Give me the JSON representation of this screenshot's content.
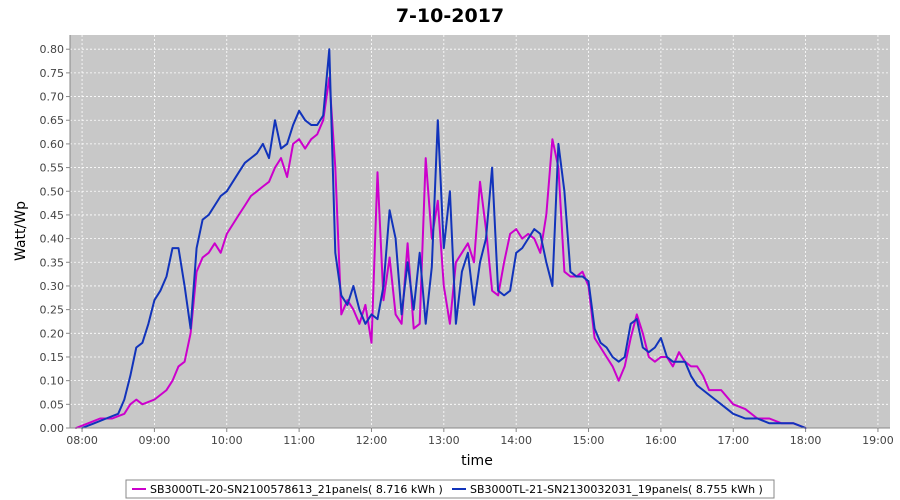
{
  "chart_data": {
    "type": "line",
    "title": "7-10-2017",
    "xlabel": "time",
    "ylabel": "Watt/Wp",
    "xlim": [
      "07:50",
      "19:10"
    ],
    "ylim": [
      0,
      0.83
    ],
    "x_ticks": [
      "08:00",
      "09:00",
      "10:00",
      "11:00",
      "12:00",
      "13:00",
      "14:00",
      "15:00",
      "16:00",
      "17:00",
      "18:00",
      "19:00"
    ],
    "y_ticks": [
      "0.00",
      "0.05",
      "0.10",
      "0.15",
      "0.20",
      "0.25",
      "0.30",
      "0.35",
      "0.40",
      "0.45",
      "0.50",
      "0.55",
      "0.60",
      "0.65",
      "0.70",
      "0.75",
      "0.80"
    ],
    "grid": true,
    "legend_position": "bottom",
    "background_color": "#c8c8c8",
    "series": [
      {
        "name": "SB3000TL-20-SN2100578613_21panels( 8.716 kWh )",
        "color": "#cc00cc",
        "points": [
          [
            "07:55",
            0.0
          ],
          [
            "08:05",
            0.01
          ],
          [
            "08:15",
            0.02
          ],
          [
            "08:25",
            0.02
          ],
          [
            "08:35",
            0.03
          ],
          [
            "08:40",
            0.05
          ],
          [
            "08:45",
            0.06
          ],
          [
            "08:50",
            0.05
          ],
          [
            "09:00",
            0.06
          ],
          [
            "09:10",
            0.08
          ],
          [
            "09:15",
            0.1
          ],
          [
            "09:20",
            0.13
          ],
          [
            "09:25",
            0.14
          ],
          [
            "09:30",
            0.2
          ],
          [
            "09:35",
            0.33
          ],
          [
            "09:40",
            0.36
          ],
          [
            "09:45",
            0.37
          ],
          [
            "09:50",
            0.39
          ],
          [
            "09:55",
            0.37
          ],
          [
            "10:00",
            0.41
          ],
          [
            "10:05",
            0.43
          ],
          [
            "10:10",
            0.45
          ],
          [
            "10:15",
            0.47
          ],
          [
            "10:20",
            0.49
          ],
          [
            "10:25",
            0.5
          ],
          [
            "10:30",
            0.51
          ],
          [
            "10:35",
            0.52
          ],
          [
            "10:40",
            0.55
          ],
          [
            "10:45",
            0.57
          ],
          [
            "10:50",
            0.53
          ],
          [
            "10:55",
            0.6
          ],
          [
            "11:00",
            0.61
          ],
          [
            "11:05",
            0.59
          ],
          [
            "11:10",
            0.61
          ],
          [
            "11:15",
            0.62
          ],
          [
            "11:20",
            0.65
          ],
          [
            "11:25",
            0.74
          ],
          [
            "11:30",
            0.55
          ],
          [
            "11:35",
            0.24
          ],
          [
            "11:40",
            0.27
          ],
          [
            "11:45",
            0.25
          ],
          [
            "11:50",
            0.22
          ],
          [
            "11:55",
            0.26
          ],
          [
            "12:00",
            0.18
          ],
          [
            "12:05",
            0.54
          ],
          [
            "12:10",
            0.27
          ],
          [
            "12:15",
            0.36
          ],
          [
            "12:20",
            0.24
          ],
          [
            "12:25",
            0.22
          ],
          [
            "12:30",
            0.39
          ],
          [
            "12:35",
            0.21
          ],
          [
            "12:40",
            0.22
          ],
          [
            "12:45",
            0.57
          ],
          [
            "12:50",
            0.4
          ],
          [
            "12:55",
            0.48
          ],
          [
            "13:00",
            0.3
          ],
          [
            "13:05",
            0.22
          ],
          [
            "13:10",
            0.35
          ],
          [
            "13:15",
            0.37
          ],
          [
            "13:20",
            0.39
          ],
          [
            "13:25",
            0.35
          ],
          [
            "13:30",
            0.52
          ],
          [
            "13:35",
            0.42
          ],
          [
            "13:40",
            0.29
          ],
          [
            "13:45",
            0.28
          ],
          [
            "13:50",
            0.35
          ],
          [
            "13:55",
            0.41
          ],
          [
            "14:00",
            0.42
          ],
          [
            "14:05",
            0.4
          ],
          [
            "14:10",
            0.41
          ],
          [
            "14:15",
            0.4
          ],
          [
            "14:20",
            0.37
          ],
          [
            "14:25",
            0.45
          ],
          [
            "14:30",
            0.61
          ],
          [
            "14:35",
            0.55
          ],
          [
            "14:40",
            0.33
          ],
          [
            "14:45",
            0.32
          ],
          [
            "14:50",
            0.32
          ],
          [
            "14:55",
            0.33
          ],
          [
            "15:00",
            0.3
          ],
          [
            "15:05",
            0.19
          ],
          [
            "15:10",
            0.17
          ],
          [
            "15:15",
            0.15
          ],
          [
            "15:20",
            0.13
          ],
          [
            "15:25",
            0.1
          ],
          [
            "15:30",
            0.13
          ],
          [
            "15:35",
            0.19
          ],
          [
            "15:40",
            0.24
          ],
          [
            "15:45",
            0.2
          ],
          [
            "15:50",
            0.15
          ],
          [
            "15:55",
            0.14
          ],
          [
            "16:00",
            0.15
          ],
          [
            "16:05",
            0.15
          ],
          [
            "16:10",
            0.13
          ],
          [
            "16:15",
            0.16
          ],
          [
            "16:20",
            0.14
          ],
          [
            "16:25",
            0.13
          ],
          [
            "16:30",
            0.13
          ],
          [
            "16:35",
            0.11
          ],
          [
            "16:40",
            0.08
          ],
          [
            "16:50",
            0.08
          ],
          [
            "17:00",
            0.05
          ],
          [
            "17:10",
            0.04
          ],
          [
            "17:20",
            0.02
          ],
          [
            "17:30",
            0.02
          ],
          [
            "17:40",
            0.01
          ],
          [
            "17:50",
            0.01
          ],
          [
            "18:00",
            0.0
          ]
        ]
      },
      {
        "name": "SB3000TL-21-SN2130032031_19panels( 8.755 kWh )",
        "color": "#1133bb",
        "points": [
          [
            "08:00",
            0.0
          ],
          [
            "08:10",
            0.01
          ],
          [
            "08:20",
            0.02
          ],
          [
            "08:30",
            0.03
          ],
          [
            "08:35",
            0.06
          ],
          [
            "08:40",
            0.11
          ],
          [
            "08:45",
            0.17
          ],
          [
            "08:50",
            0.18
          ],
          [
            "08:55",
            0.22
          ],
          [
            "09:00",
            0.27
          ],
          [
            "09:05",
            0.29
          ],
          [
            "09:10",
            0.32
          ],
          [
            "09:15",
            0.38
          ],
          [
            "09:20",
            0.38
          ],
          [
            "09:25",
            0.3
          ],
          [
            "09:30",
            0.21
          ],
          [
            "09:35",
            0.38
          ],
          [
            "09:40",
            0.44
          ],
          [
            "09:45",
            0.45
          ],
          [
            "09:50",
            0.47
          ],
          [
            "09:55",
            0.49
          ],
          [
            "10:00",
            0.5
          ],
          [
            "10:05",
            0.52
          ],
          [
            "10:10",
            0.54
          ],
          [
            "10:15",
            0.56
          ],
          [
            "10:20",
            0.57
          ],
          [
            "10:25",
            0.58
          ],
          [
            "10:30",
            0.6
          ],
          [
            "10:35",
            0.57
          ],
          [
            "10:40",
            0.65
          ],
          [
            "10:45",
            0.59
          ],
          [
            "10:50",
            0.6
          ],
          [
            "10:55",
            0.64
          ],
          [
            "11:00",
            0.67
          ],
          [
            "11:05",
            0.65
          ],
          [
            "11:10",
            0.64
          ],
          [
            "11:15",
            0.64
          ],
          [
            "11:20",
            0.66
          ],
          [
            "11:25",
            0.8
          ],
          [
            "11:30",
            0.37
          ],
          [
            "11:35",
            0.28
          ],
          [
            "11:40",
            0.26
          ],
          [
            "11:45",
            0.3
          ],
          [
            "11:50",
            0.25
          ],
          [
            "11:55",
            0.22
          ],
          [
            "12:00",
            0.24
          ],
          [
            "12:05",
            0.23
          ],
          [
            "12:10",
            0.3
          ],
          [
            "12:15",
            0.46
          ],
          [
            "12:20",
            0.4
          ],
          [
            "12:25",
            0.24
          ],
          [
            "12:30",
            0.35
          ],
          [
            "12:35",
            0.25
          ],
          [
            "12:40",
            0.37
          ],
          [
            "12:45",
            0.22
          ],
          [
            "12:50",
            0.34
          ],
          [
            "12:55",
            0.65
          ],
          [
            "13:00",
            0.38
          ],
          [
            "13:05",
            0.5
          ],
          [
            "13:10",
            0.22
          ],
          [
            "13:15",
            0.33
          ],
          [
            "13:20",
            0.37
          ],
          [
            "13:25",
            0.26
          ],
          [
            "13:30",
            0.35
          ],
          [
            "13:35",
            0.4
          ],
          [
            "13:40",
            0.55
          ],
          [
            "13:45",
            0.29
          ],
          [
            "13:50",
            0.28
          ],
          [
            "13:55",
            0.29
          ],
          [
            "14:00",
            0.37
          ],
          [
            "14:05",
            0.38
          ],
          [
            "14:10",
            0.4
          ],
          [
            "14:15",
            0.42
          ],
          [
            "14:20",
            0.41
          ],
          [
            "14:25",
            0.35
          ],
          [
            "14:30",
            0.3
          ],
          [
            "14:35",
            0.6
          ],
          [
            "14:40",
            0.5
          ],
          [
            "14:45",
            0.33
          ],
          [
            "14:50",
            0.32
          ],
          [
            "14:55",
            0.32
          ],
          [
            "15:00",
            0.31
          ],
          [
            "15:05",
            0.21
          ],
          [
            "15:10",
            0.18
          ],
          [
            "15:15",
            0.17
          ],
          [
            "15:20",
            0.15
          ],
          [
            "15:25",
            0.14
          ],
          [
            "15:30",
            0.15
          ],
          [
            "15:35",
            0.22
          ],
          [
            "15:40",
            0.23
          ],
          [
            "15:45",
            0.17
          ],
          [
            "15:50",
            0.16
          ],
          [
            "15:55",
            0.17
          ],
          [
            "16:00",
            0.19
          ],
          [
            "16:05",
            0.15
          ],
          [
            "16:10",
            0.14
          ],
          [
            "16:15",
            0.14
          ],
          [
            "16:20",
            0.14
          ],
          [
            "16:25",
            0.11
          ],
          [
            "16:30",
            0.09
          ],
          [
            "16:40",
            0.07
          ],
          [
            "16:50",
            0.05
          ],
          [
            "17:00",
            0.03
          ],
          [
            "17:10",
            0.02
          ],
          [
            "17:20",
            0.02
          ],
          [
            "17:30",
            0.01
          ],
          [
            "17:40",
            0.01
          ],
          [
            "17:50",
            0.01
          ],
          [
            "18:00",
            0.0
          ]
        ]
      }
    ]
  }
}
